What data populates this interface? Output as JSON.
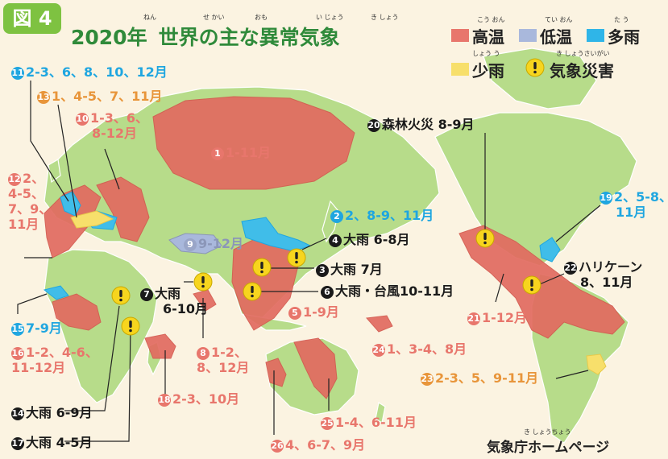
{
  "header": {
    "badge": "図 4",
    "title_main": "2020年",
    "title_sub": "世界の主な異常気象",
    "furigana": {
      "nen": "ねん",
      "sekai": "せ かい",
      "omo": "おも",
      "ijou": "い じょう",
      "kishou": "き しょう"
    }
  },
  "legend": {
    "hot": {
      "label": "高温",
      "ruby": "こう おん",
      "color": "#e8766c"
    },
    "cold": {
      "label": "低温",
      "ruby": "てい おん",
      "color": "#a9b8dc"
    },
    "wet": {
      "label": "多雨",
      "ruby": "た う",
      "color": "#2fb5e8"
    },
    "dry": {
      "label": "少雨",
      "ruby": "しょう う",
      "color": "#f7df6b"
    },
    "disaster": {
      "label": "気象災害",
      "ruby": "き しょうさいがい",
      "color": "#f7d51e"
    }
  },
  "colors": {
    "land": "#b7dc8a",
    "ocean": "#fbf3e1",
    "hot_region": "#e26b60",
    "hot_region_dark": "#d35a4f",
    "cold_region": "#a9b8dc",
    "wet_region": "#40bde9",
    "dry_region": "#f7df6b"
  },
  "events": [
    {
      "no": "1",
      "text": "1-11月",
      "type": "hot"
    },
    {
      "no": "2",
      "text": "2、8-9、11月",
      "type": "wet"
    },
    {
      "no": "3",
      "text": "大雨 7月",
      "type": "disaster"
    },
    {
      "no": "4",
      "text": "大雨 6-8月",
      "type": "disaster"
    },
    {
      "no": "5",
      "text": "1-9月",
      "type": "hot"
    },
    {
      "no": "6",
      "text": "大雨・台風10-11月",
      "type": "disaster"
    },
    {
      "no": "7",
      "text": "大雨",
      "text2": "6-10月",
      "type": "disaster"
    },
    {
      "no": "8",
      "text": "1-2、",
      "text2": "8、12月",
      "type": "hot"
    },
    {
      "no": "9",
      "text": "9-12月",
      "type": "cold"
    },
    {
      "no": "10",
      "text": "1-3、6、",
      "text2": "8-12月",
      "type": "hot"
    },
    {
      "no": "11",
      "text": "2-3、6、8、10、12月",
      "type": "wet"
    },
    {
      "no": "12",
      "text": "2、",
      "text2": "4-5、",
      "text3": "7、9、",
      "text4": "11月",
      "type": "hot"
    },
    {
      "no": "13",
      "text": "1、4-5、7、11月",
      "type": "dry"
    },
    {
      "no": "14",
      "text": "大雨 6-9月",
      "type": "disaster"
    },
    {
      "no": "15",
      "text": "7-9月",
      "type": "wet"
    },
    {
      "no": "16",
      "text": "1-2、4-6、",
      "text2": "11-12月",
      "type": "hot"
    },
    {
      "no": "17",
      "text": "大雨 4-5月",
      "type": "disaster"
    },
    {
      "no": "18",
      "text": "2-3、10月",
      "type": "hot"
    },
    {
      "no": "19",
      "text": "2、5-8、",
      "text2": "11月",
      "type": "wet"
    },
    {
      "no": "20",
      "text": "森林火災 8-9月",
      "type": "disaster"
    },
    {
      "no": "21",
      "text": "1-12月",
      "type": "hot"
    },
    {
      "no": "22",
      "text": "ハリケーン",
      "text2": "8、11月",
      "type": "disaster"
    },
    {
      "no": "23",
      "text": "2-3、5、9-11月",
      "type": "dry"
    },
    {
      "no": "24",
      "text": "1、3-4、8月",
      "type": "hot"
    },
    {
      "no": "25",
      "text": "1-4、6-11月",
      "type": "hot"
    },
    {
      "no": "26",
      "text": "4、6-7、9月",
      "type": "hot"
    }
  ],
  "credit": "気象庁ホームページ",
  "credit_ruby": "き しょうちょう"
}
